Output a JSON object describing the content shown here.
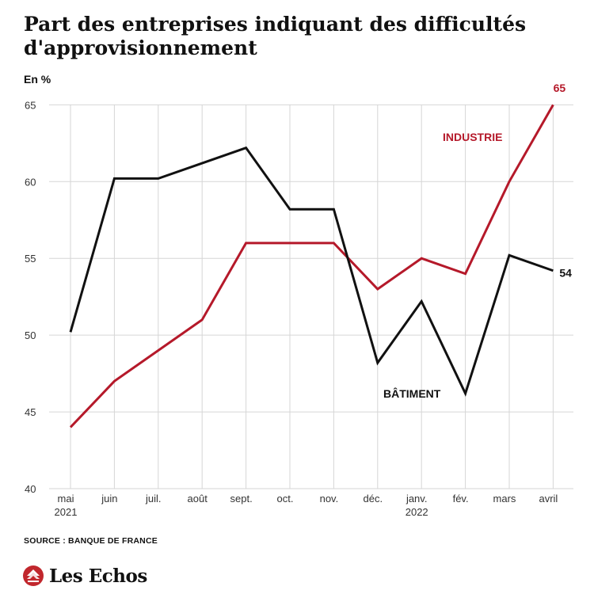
{
  "header": {
    "title_line1": "Part des entreprises indiquant des difficultés",
    "title_line2": "d'approvisionnement",
    "unit": "En %"
  },
  "footer": {
    "source": "SOURCE : BANQUE DE FRANCE",
    "brand": "Les Echos",
    "brand_logo_icon": "les-echos-logo-icon"
  },
  "colors": {
    "industrie": "#b5192a",
    "batiment": "#111111",
    "grid": "#d6d6d6",
    "axis_text": "#333333"
  },
  "chart_data": {
    "type": "line",
    "title": "Part des entreprises indiquant des difficultés d'approvisionnement",
    "ylabel": "En %",
    "ylim": [
      40,
      66
    ],
    "yticks": [
      40,
      45,
      50,
      55,
      60,
      65
    ],
    "grid": true,
    "categories": [
      "mai",
      "juin",
      "juil.",
      "août",
      "sept.",
      "oct.",
      "nov.",
      "déc.",
      "janv.",
      "fév.",
      "mars",
      "avril"
    ],
    "category_sublabels": [
      "2021",
      "",
      "",
      "",
      "",
      "",
      "",
      "",
      "2022",
      "",
      "",
      ""
    ],
    "series": [
      {
        "name": "INDUSTRIE",
        "color": "#b5192a",
        "values": [
          44,
          47,
          49,
          51,
          56,
          56,
          56,
          53,
          55,
          54,
          60,
          65
        ],
        "end_label": "65"
      },
      {
        "name": "BÂTIMENT",
        "color": "#111111",
        "values": [
          50.2,
          60.2,
          60.2,
          61.2,
          62.2,
          58.2,
          58.2,
          48.2,
          52.2,
          46.2,
          55.2,
          54.2
        ],
        "end_label": "54"
      }
    ]
  }
}
